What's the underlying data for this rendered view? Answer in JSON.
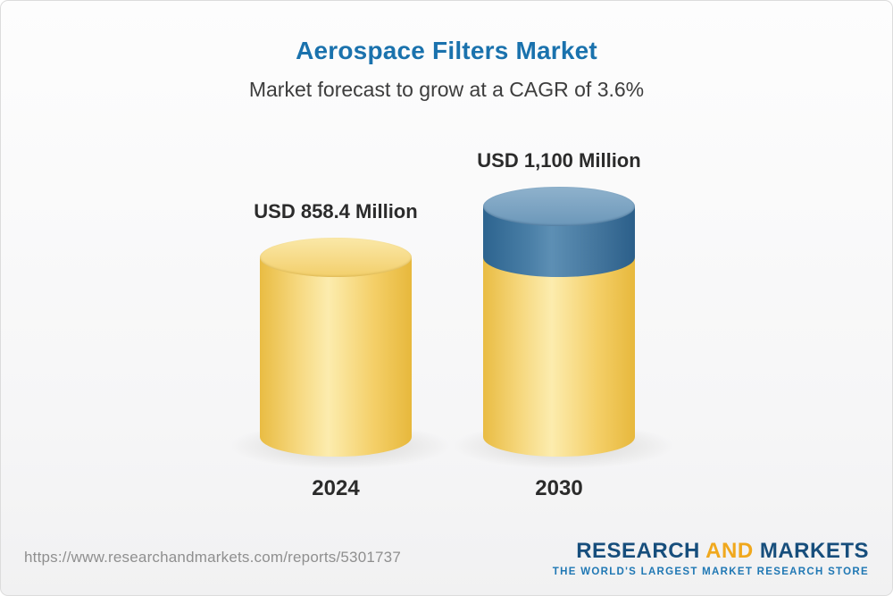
{
  "chart_data": {
    "type": "bar",
    "title": "Aerospace Filters Market",
    "subtitle": "Market forecast to grow at a CAGR of 3.6%",
    "cagr_percent": 3.6,
    "unit": "USD Million",
    "categories": [
      "2024",
      "2030"
    ],
    "values": [
      858.4,
      1100
    ],
    "value_labels": [
      "USD 858.4 Million",
      "USD 1,100 Million"
    ],
    "legend_position": "none",
    "grid": false,
    "ylim": [
      0,
      1100
    ],
    "colors": {
      "title": "#1a72ad",
      "bar_base": "#f5ce63",
      "bar_growth_segment": "#3c78a6",
      "label_text": "#2b2b2b"
    },
    "notes": "3D cylinder bars; 2030 bar shows growth above 2024 level as a blue top segment"
  },
  "footer": {
    "report_url": "https://www.researchandmarkets.com/reports/5301737",
    "logo": {
      "word_research": "RESEARCH",
      "word_and": "AND",
      "word_markets": " MARKETS",
      "tagline": "THE WORLD'S LARGEST MARKET RESEARCH STORE"
    }
  }
}
